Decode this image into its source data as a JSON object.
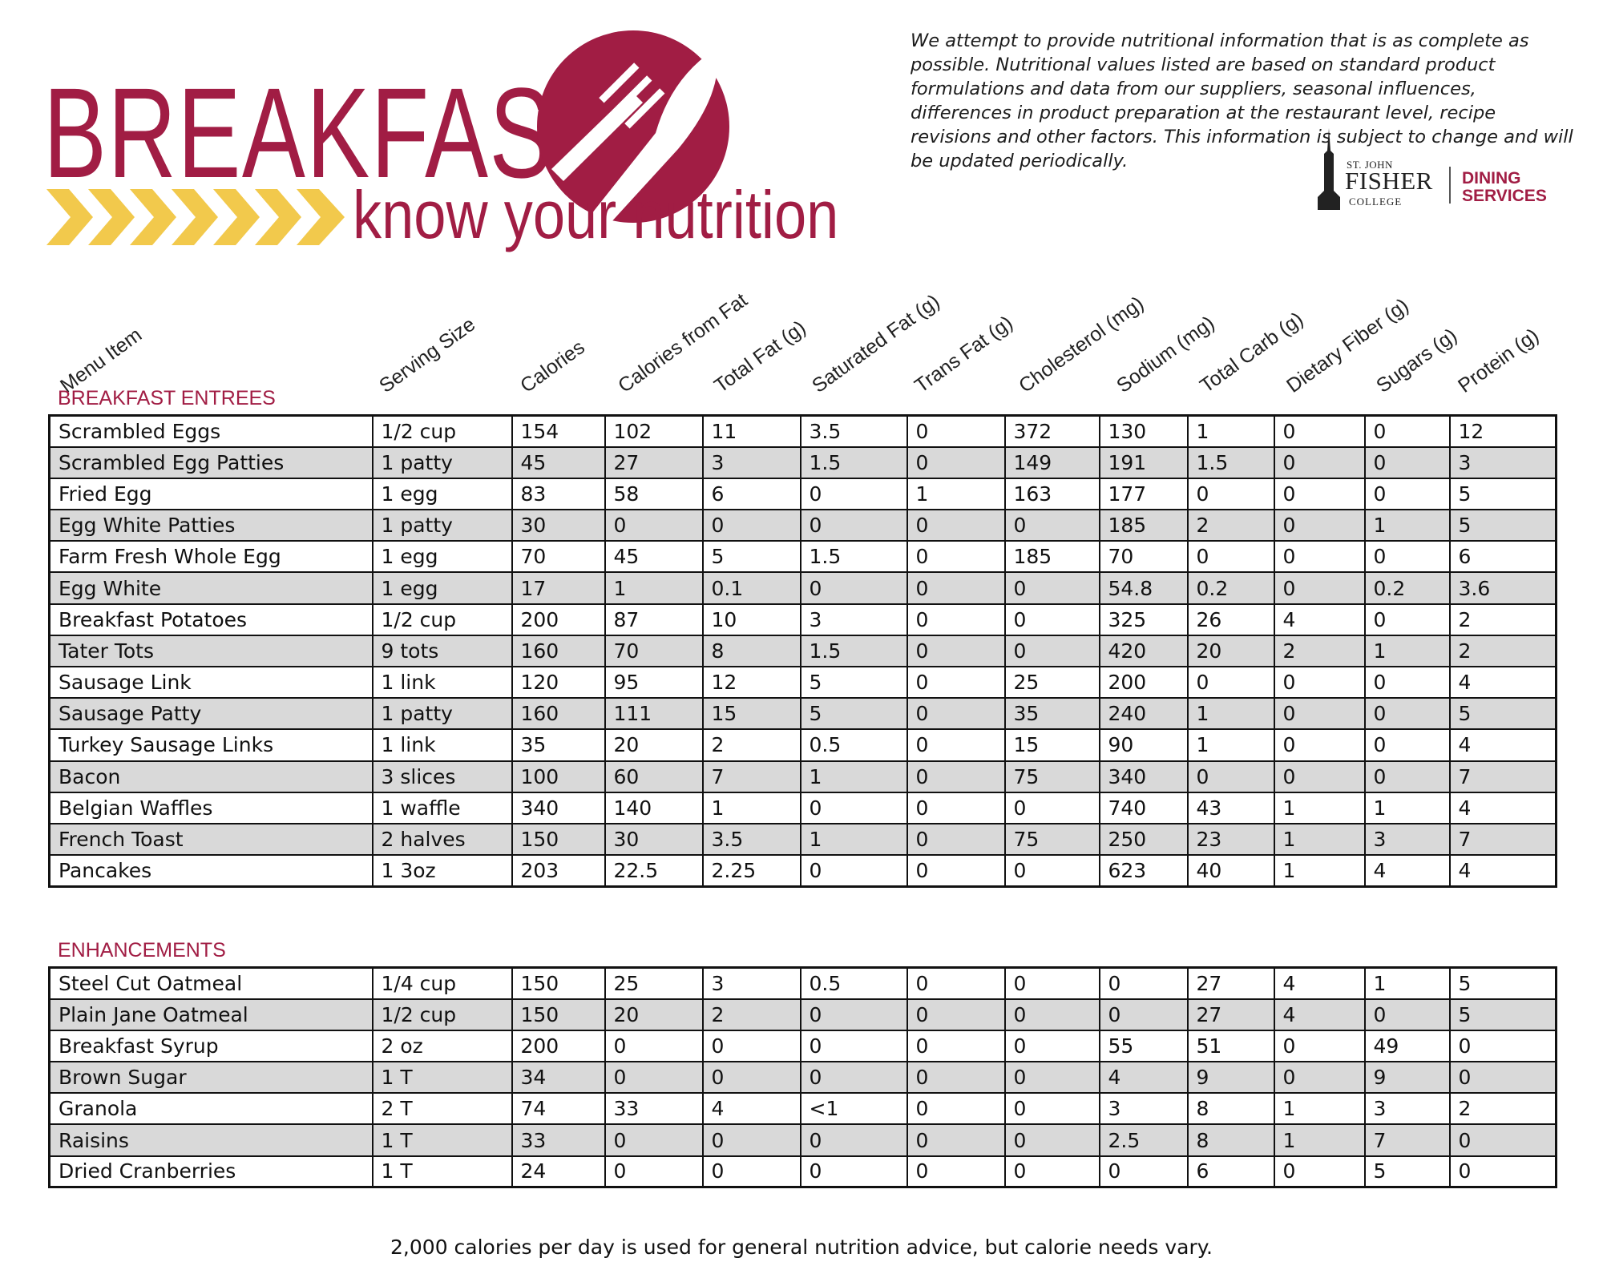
{
  "header": {
    "title": "BREAKFAST",
    "subtitle": "know your nutrition",
    "disclaimer": "We attempt to provide nutritional information that is as complete as possible. Nutritional values listed are based on standard product formulations and data from our suppliers, seasonal influences, differences in product preparation at the restaurant level, recipe revisions and other factors. This information is subject to change and will be updated periodically.",
    "brand_color": "#a11d44",
    "accent_color": "#f2c94c"
  },
  "logo": {
    "st_john": "ST. JOHN",
    "fisher": "FISHER",
    "college": "COLLEGE",
    "dining": "DINING",
    "services": "SERVICES"
  },
  "columns": [
    "Menu Item",
    "Serving Size",
    "Calories",
    "Calories from Fat",
    "Total Fat (g)",
    "Saturated Fat (g)",
    "Trans Fat (g)",
    "Cholesterol (mg)",
    "Sodium (mg)",
    "Total Carb (g)",
    "Dietary Fiber (g)",
    "Sugars (g)",
    "Protein (g)"
  ],
  "sections": [
    {
      "label": "BREAKFAST ENTREES",
      "rows": [
        [
          "Scrambled Eggs",
          "1/2 cup",
          "154",
          "102",
          "11",
          "3.5",
          "0",
          "372",
          "130",
          "1",
          "0",
          "0",
          "12"
        ],
        [
          "Scrambled Egg Patties",
          "1 patty",
          "45",
          "27",
          "3",
          "1.5",
          "0",
          "149",
          "191",
          "1.5",
          "0",
          "0",
          "3"
        ],
        [
          "Fried Egg",
          "1 egg",
          "83",
          "58",
          "6",
          "0",
          "1",
          "163",
          "177",
          "0",
          "0",
          "0",
          "5"
        ],
        [
          "Egg White Patties",
          "1 patty",
          "30",
          "0",
          "0",
          "0",
          "0",
          "0",
          "185",
          "2",
          "0",
          "1",
          "5"
        ],
        [
          "Farm Fresh Whole Egg",
          "1 egg",
          "70",
          "45",
          "5",
          "1.5",
          "0",
          "185",
          "70",
          "0",
          "0",
          "0",
          "6"
        ],
        [
          "Egg White",
          "1 egg",
          "17",
          "1",
          "0.1",
          "0",
          "0",
          "0",
          "54.8",
          "0.2",
          "0",
          "0.2",
          "3.6"
        ],
        [
          "Breakfast Potatoes",
          "1/2 cup",
          "200",
          "87",
          "10",
          "3",
          "0",
          "0",
          "325",
          "26",
          "4",
          "0",
          "2"
        ],
        [
          "Tater Tots",
          "9 tots",
          "160",
          "70",
          "8",
          "1.5",
          "0",
          "0",
          "420",
          "20",
          "2",
          "1",
          "2"
        ],
        [
          "Sausage Link",
          "1 link",
          "120",
          "95",
          "12",
          "5",
          "0",
          "25",
          "200",
          "0",
          "0",
          "0",
          "4"
        ],
        [
          "Sausage Patty",
          "1 patty",
          "160",
          "111",
          "15",
          "5",
          "0",
          "35",
          "240",
          "1",
          "0",
          "0",
          "5"
        ],
        [
          "Turkey Sausage Links",
          "1 link",
          "35",
          "20",
          "2",
          "0.5",
          "0",
          "15",
          "90",
          "1",
          "0",
          "0",
          "4"
        ],
        [
          "Bacon",
          "3 slices",
          "100",
          "60",
          "7",
          "1",
          "0",
          "75",
          "340",
          "0",
          "0",
          "0",
          "7"
        ],
        [
          "Belgian Waffles",
          "1 waffle",
          "340",
          "140",
          "1",
          "0",
          "0",
          "0",
          "740",
          "43",
          "1",
          "1",
          "4"
        ],
        [
          "French Toast",
          "2 halves",
          "150",
          "30",
          "3.5",
          "1",
          "0",
          "75",
          "250",
          "23",
          "1",
          "3",
          "7"
        ],
        [
          "Pancakes",
          "1 3oz",
          "203",
          "22.5",
          "2.25",
          "0",
          "0",
          "0",
          "623",
          "40",
          "1",
          "4",
          "4"
        ]
      ]
    },
    {
      "label": "ENHANCEMENTS",
      "rows": [
        [
          "Steel Cut Oatmeal",
          "1/4 cup",
          "150",
          "25",
          "3",
          "0.5",
          "0",
          "0",
          "0",
          "27",
          "4",
          "1",
          "5"
        ],
        [
          "Plain Jane Oatmeal",
          "1/2 cup",
          "150",
          "20",
          "2",
          "0",
          "0",
          "0",
          "0",
          "27",
          "4",
          "0",
          "5"
        ],
        [
          "Breakfast Syrup",
          "2 oz",
          "200",
          "0",
          "0",
          "0",
          "0",
          "0",
          "55",
          "51",
          "0",
          "49",
          "0"
        ],
        [
          "Brown Sugar",
          "1 T",
          "34",
          "0",
          "0",
          "0",
          "0",
          "0",
          "4",
          "9",
          "0",
          "9",
          "0"
        ],
        [
          "Granola",
          "2 T",
          "74",
          "33",
          "4",
          "<1",
          "0",
          "0",
          "3",
          "8",
          "1",
          "3",
          "2"
        ],
        [
          "Raisins",
          "1 T",
          "33",
          "0",
          "0",
          "0",
          "0",
          "0",
          "2.5",
          "8",
          "1",
          "7",
          "0"
        ],
        [
          "Dried Cranberries",
          "1 T",
          "24",
          "0",
          "0",
          "0",
          "0",
          "0",
          "0",
          "6",
          "0",
          "5",
          "0"
        ]
      ]
    }
  ],
  "footer": "2,000 calories per day is used for general nutrition advice, but calorie needs vary."
}
